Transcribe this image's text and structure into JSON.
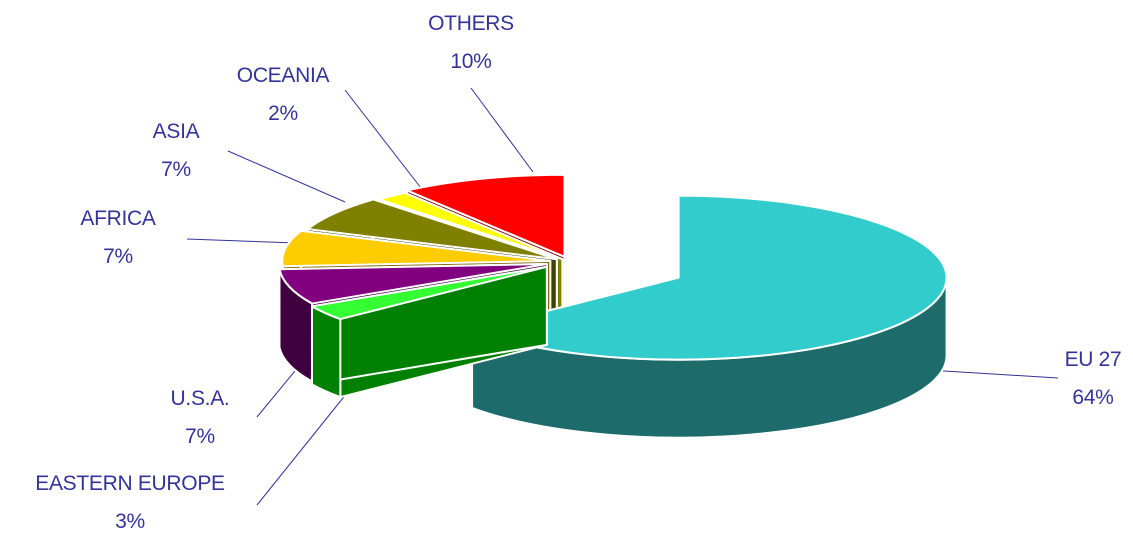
{
  "chart_data": {
    "type": "pie",
    "style": "3d-exploded",
    "slices": [
      {
        "label": "EU 27",
        "pct_label": "64%",
        "value": 64,
        "color": "#33CCCC",
        "side_color": "#1D6B6B"
      },
      {
        "label": "EASTERN EUROPE",
        "pct_label": "3%",
        "value": 3,
        "color": "#33FF33",
        "side_color": "#008000"
      },
      {
        "label": "U.S.A.",
        "pct_label": "7%",
        "value": 7,
        "color": "#800080",
        "side_color": "#3F003F"
      },
      {
        "label": "AFRICA",
        "pct_label": "7%",
        "value": 7,
        "color": "#FFCC00",
        "side_color": "#806600"
      },
      {
        "label": "ASIA",
        "pct_label": "7%",
        "value": 7,
        "color": "#808000",
        "side_color": "#404000"
      },
      {
        "label": "OCEANIA",
        "pct_label": "2%",
        "value": 2,
        "color": "#FFFF00",
        "side_color": "#808000"
      },
      {
        "label": "OTHERS",
        "pct_label": "10%",
        "value": 10,
        "color": "#FF0000",
        "side_color": "#800000"
      }
    ],
    "label_color": "#333399",
    "leader_line_color": "#333399"
  }
}
